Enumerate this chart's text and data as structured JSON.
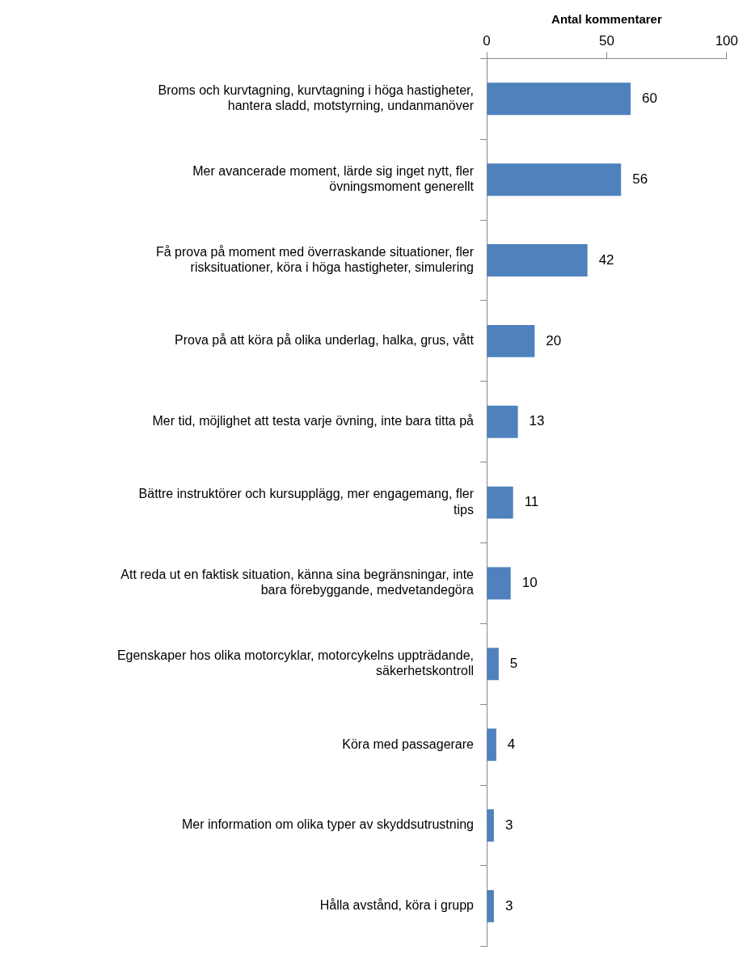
{
  "chart_data": {
    "type": "bar",
    "orientation": "horizontal",
    "xlabel": "Antal kommentarer",
    "categories": [
      "Broms och kurvtagning, kurvtagning i höga hastigheter, hantera sladd, motstyrning, undanmanöver",
      "Mer avancerade moment, lärde sig inget nytt, fler övningsmoment generellt",
      "Få prova på moment med överraskande situationer, fler risksituationer, köra i höga hastigheter, simulering",
      "Prova på att köra på olika underlag, halka, grus, vått",
      "Mer tid, möjlighet att testa varje övning, inte bara titta på",
      "Bättre instruktörer och kursupplägg, mer engagemang, fler tips",
      "Att reda ut en faktisk situation, känna sina begränsningar, inte bara förebyggande, medvetandegöra",
      "Egenskaper hos olika motorcyklar, motorcykelns uppträdande, säkerhetskontroll",
      "Köra med passagerare",
      "Mer information om olika typer av skyddsutrustning",
      "Hålla avstånd, köra i grupp"
    ],
    "values": [
      60,
      56,
      42,
      20,
      13,
      11,
      10,
      5,
      4,
      3,
      3
    ],
    "color": "#4f81bd",
    "xlim": [
      0,
      100
    ],
    "xticks": [
      0,
      50,
      100
    ],
    "data_labels": true,
    "grid": false,
    "legend": false
  }
}
